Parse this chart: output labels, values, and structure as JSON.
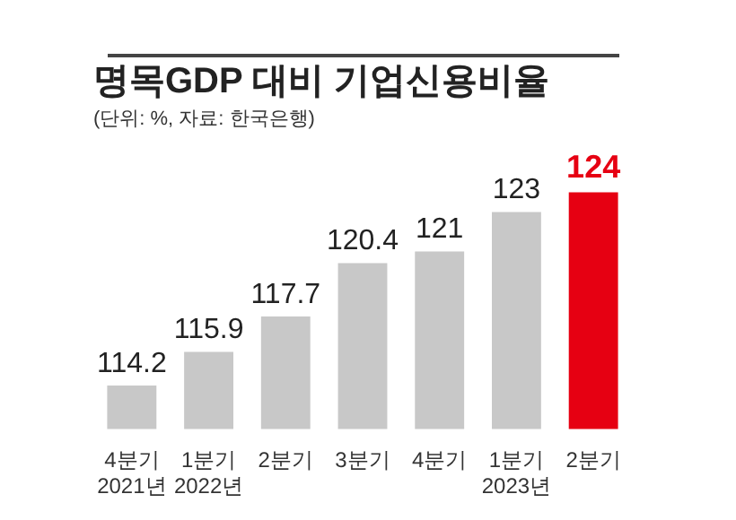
{
  "chart_data": {
    "type": "bar",
    "title": "명목GDP 대비 기업신용비율",
    "subtitle": "(단위: %, 자료: 한국은행)",
    "categories": [
      "4분기\n2021년",
      "1분기\n2022년",
      "2분기",
      "3분기",
      "4분기",
      "1분기\n2023년",
      "2분기"
    ],
    "values": [
      114.2,
      115.9,
      117.7,
      120.4,
      121,
      123,
      124
    ],
    "colors": [
      "#c8c8c8",
      "#c8c8c8",
      "#c8c8c8",
      "#c8c8c8",
      "#c8c8c8",
      "#c8c8c8",
      "#e60012"
    ],
    "data_labels": true,
    "grid": false,
    "legend": false,
    "tick_labels": "x"
  }
}
